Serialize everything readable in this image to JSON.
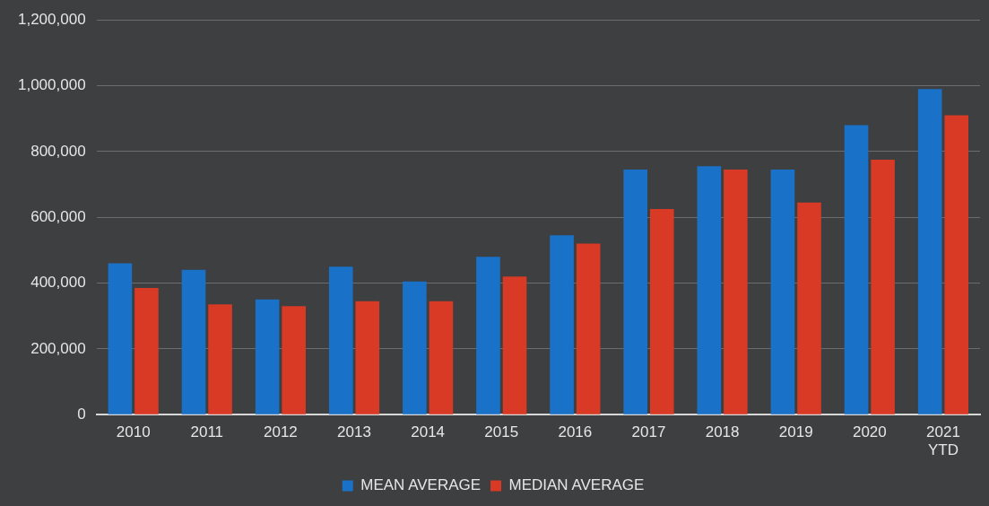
{
  "chart_data": {
    "type": "bar",
    "categories": [
      "2010",
      "2011",
      "2012",
      "2013",
      "2014",
      "2015",
      "2016",
      "2017",
      "2018",
      "2019",
      "2020",
      "2021\nYTD"
    ],
    "series": [
      {
        "name": "MEAN AVERAGE",
        "color": "#1a72c8",
        "values": [
          460000,
          440000,
          350000,
          450000,
          405000,
          480000,
          545000,
          745000,
          755000,
          745000,
          880000,
          990000
        ]
      },
      {
        "name": "MEDIAN AVERAGE",
        "color": "#d83a25",
        "values": [
          385000,
          335000,
          330000,
          345000,
          345000,
          420000,
          520000,
          625000,
          745000,
          645000,
          775000,
          910000
        ]
      }
    ],
    "ylim": [
      0,
      1200000
    ],
    "yticks": [
      0,
      {
        "value": 200000,
        "label": "200,000"
      },
      {
        "value": 400000,
        "label": "400,000"
      },
      {
        "value": 600000,
        "label": "600,000"
      },
      {
        "value": 800000,
        "label": "800,000"
      },
      {
        "value": 1000000,
        "label": "1,000,000"
      },
      {
        "value": 1200000,
        "label": "1,200,000"
      }
    ],
    "grid": "y",
    "legend": "bottom"
  }
}
